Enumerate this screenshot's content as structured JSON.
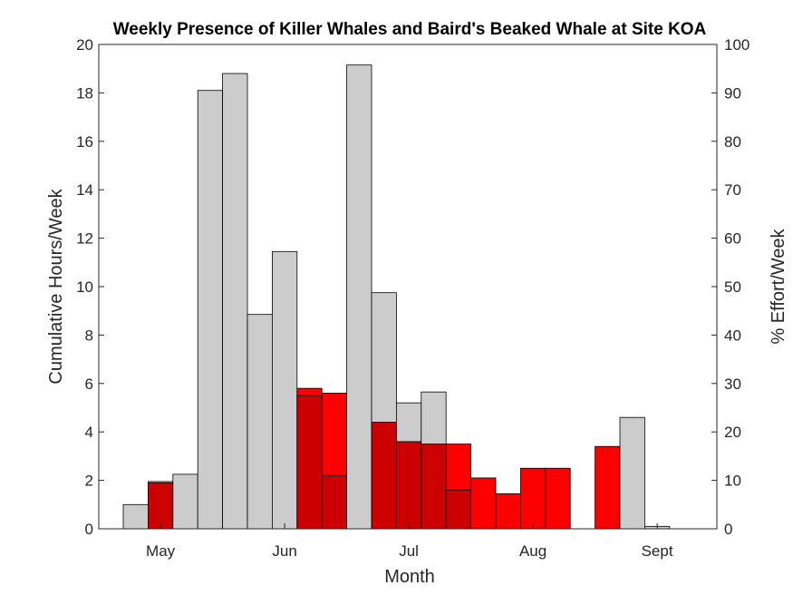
{
  "chart_data": {
    "type": "bar",
    "title": "Weekly Presence of Killer Whales and Baird's Beaked Whale at Site KOA",
    "xlabel": "Month",
    "ylabel_left": "Cumulative Hours/Week",
    "ylabel_right": "% Effort/Week",
    "ylim_left": [
      0,
      20
    ],
    "ylim_right": [
      0,
      100
    ],
    "y_ticks_left": [
      "0",
      "2",
      "4",
      "6",
      "8",
      "10",
      "12",
      "14",
      "16",
      "18",
      "20"
    ],
    "y_ticks_right": [
      "0",
      "10",
      "20",
      "30",
      "40",
      "50",
      "60",
      "70",
      "80",
      "90",
      "100"
    ],
    "x_ticks": [
      "May",
      "Jun",
      "Jul",
      "Aug",
      "Sept"
    ],
    "x_tick_week_positions": [
      1.5,
      6.5,
      11.5,
      16.5,
      21.5
    ],
    "weeks": [
      0,
      1,
      2,
      3,
      4,
      5,
      6,
      7,
      8,
      9,
      10,
      11,
      12,
      13,
      14,
      15,
      16,
      17,
      18,
      19,
      20,
      21,
      22,
      23
    ],
    "series": [
      {
        "values": [
          0,
          1.9,
          0,
          0,
          0,
          0,
          0,
          5.8,
          5.6,
          0,
          4.4,
          3.6,
          3.5,
          3.5,
          2.1,
          1.45,
          2.5,
          2.5,
          0,
          3.4,
          0,
          0,
          0,
          0
        ],
        "color": "#ff0000"
      },
      {
        "values": [
          1.0,
          1.95,
          2.25,
          18.1,
          18.8,
          8.85,
          11.45,
          5.5,
          2.2,
          19.15,
          9.75,
          5.2,
          5.65,
          1.6,
          0,
          0,
          0,
          0,
          0,
          0,
          4.6,
          0.1,
          0,
          0
        ],
        "color": "#cccccc"
      }
    ],
    "overlap_color": "#cc0000",
    "bar_outline": "#000000",
    "grid": false,
    "legend": "none"
  }
}
